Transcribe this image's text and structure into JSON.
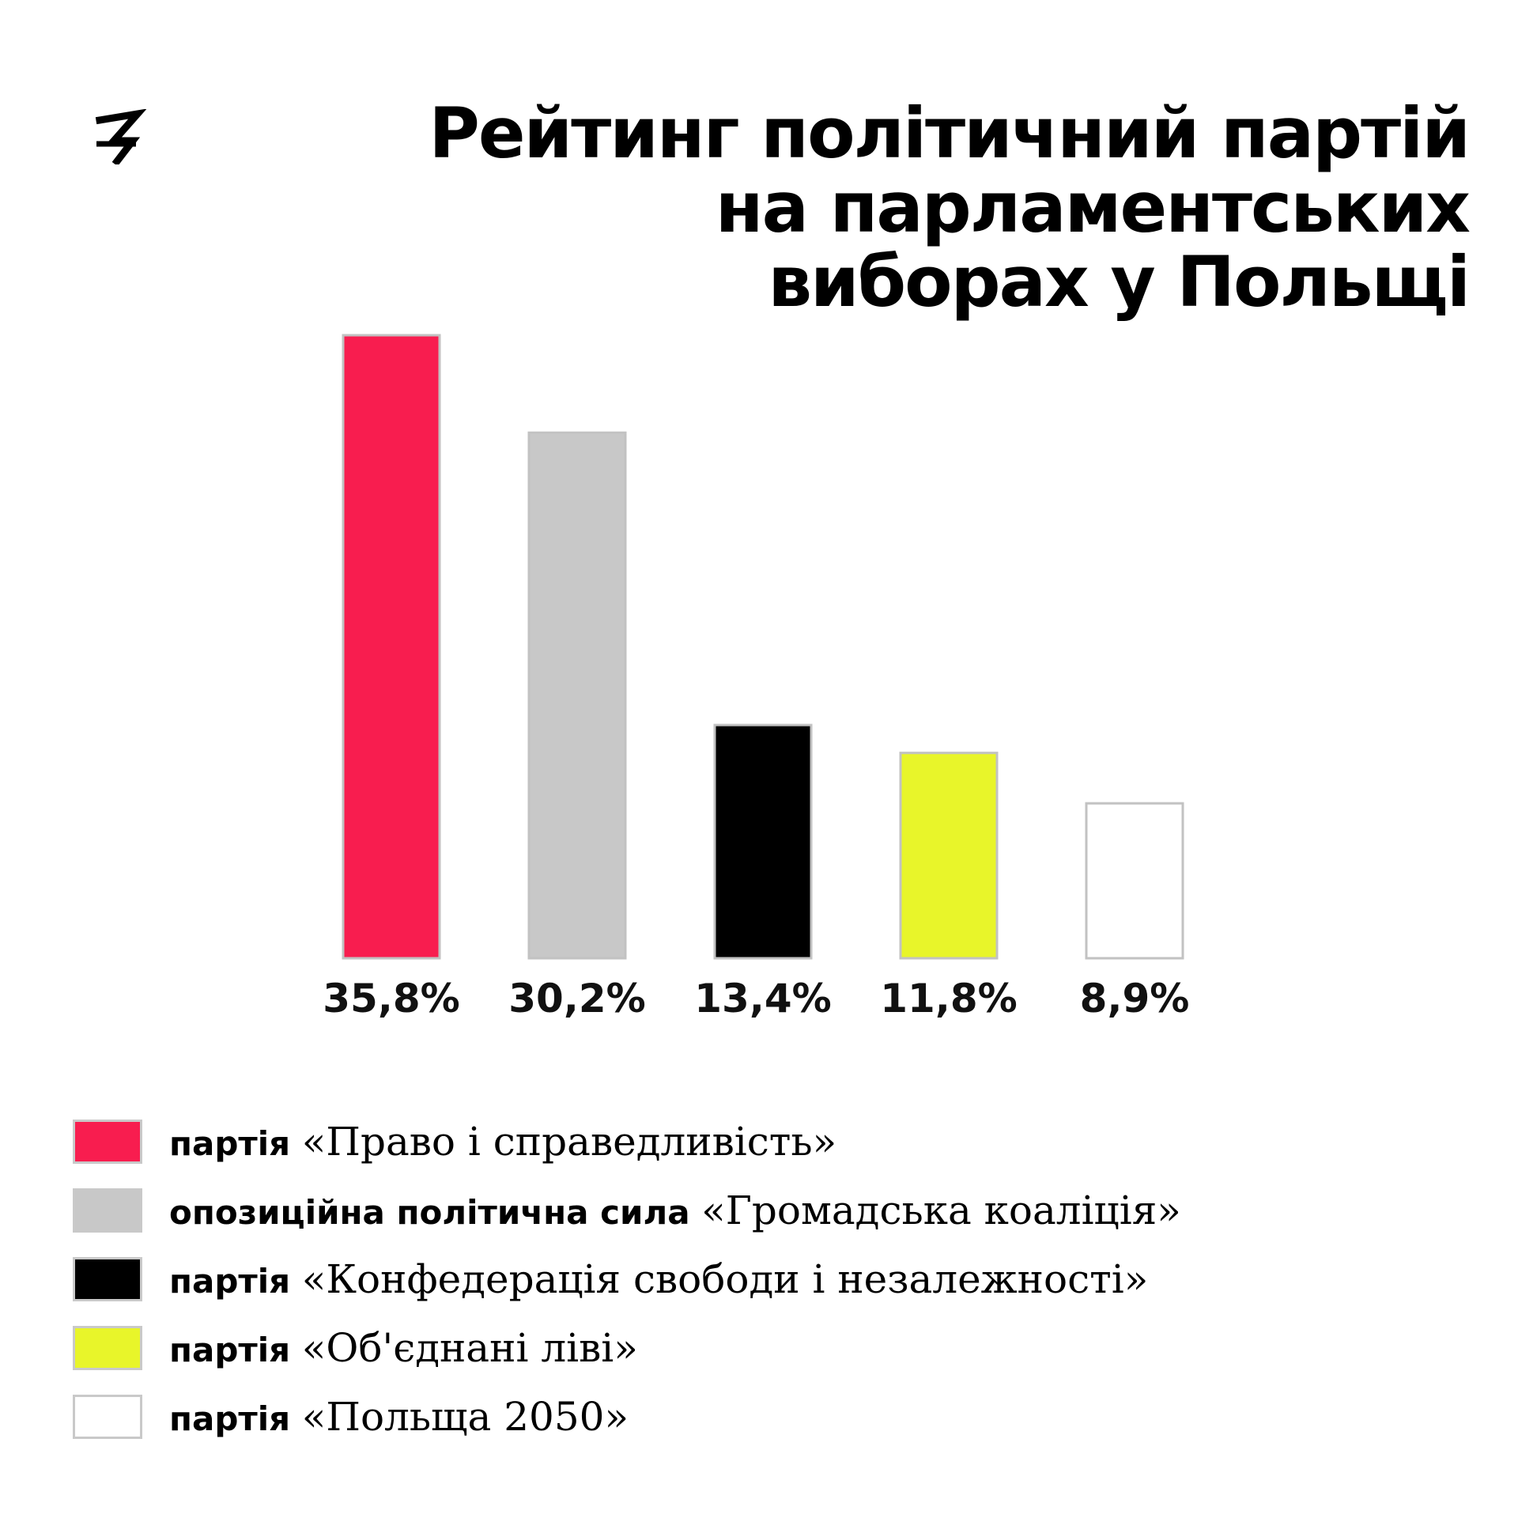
{
  "header": {
    "logo_icon": "z-logo-icon",
    "title_lines": [
      "Рейтинг політичний партій",
      "на парламентських",
      "виборах у Польщі"
    ]
  },
  "chart_data": {
    "type": "bar",
    "title": "Рейтинг політичний партій на парламентських виборах у Польщі",
    "categories": [
      "партія «Право і справедливість»",
      "опозиційна політична сила «Громадська коаліція»",
      "партія «Конфедерація свободи і незалежності»",
      "партія «Об'єднані ліві»",
      "партія «Польща 2050»"
    ],
    "values": [
      35.8,
      30.2,
      13.4,
      11.8,
      8.9
    ],
    "value_labels": [
      "35,8%",
      "30,2%",
      "13,4%",
      "11,8%",
      "8,9%"
    ],
    "colors": [
      "#f81d4f",
      "#c8c8c8",
      "#000000",
      "#e8f52a",
      "#ffffff"
    ],
    "unit": "%",
    "ylim": [
      0,
      35.8
    ],
    "grid": false,
    "axes_visible": false,
    "legend_position": "bottom-left"
  },
  "legend": {
    "items": [
      {
        "prefix": "партія",
        "name": "«Право і справедливість»",
        "color": "#f81d4f"
      },
      {
        "prefix": "опозиційна політична сила",
        "name": "«Громадська коаліція»",
        "color": "#c8c8c8"
      },
      {
        "prefix": "партія",
        "name": "«Конфедерація свободи і незалежності»",
        "color": "#000000"
      },
      {
        "prefix": "партія",
        "name": "«Об'єднані ліві»",
        "color": "#e8f52a"
      },
      {
        "prefix": "партія",
        "name": "«Польща 2050»",
        "color": "#ffffff"
      }
    ]
  }
}
